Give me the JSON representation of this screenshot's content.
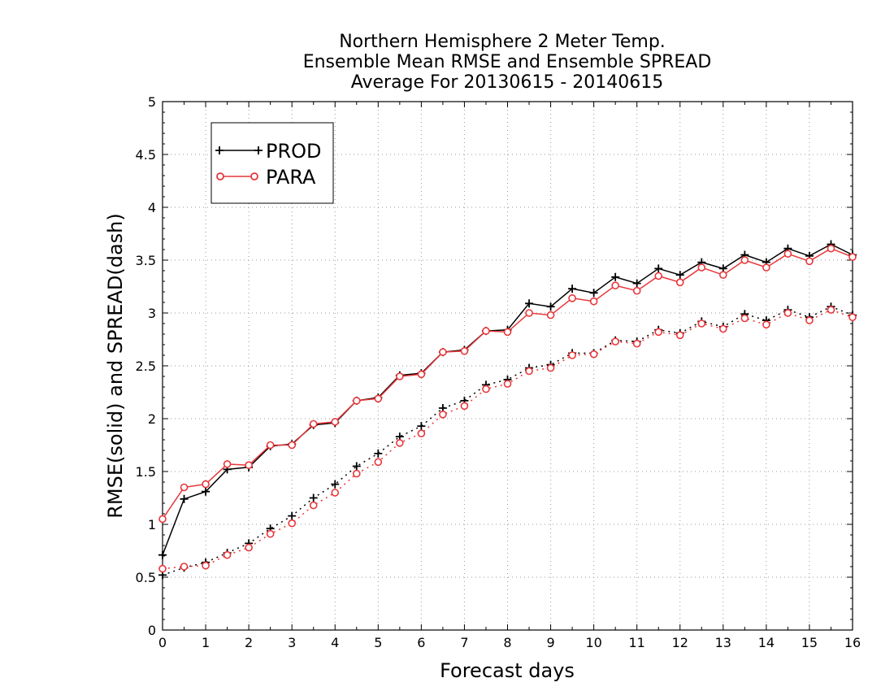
{
  "chart_data": {
    "type": "line",
    "title_lines": [
      "Northern Hemisphere 2 Meter Temp.",
      "Ensemble Mean RMSE and Ensemble SPREAD",
      "Average For 20130615 - 20140615"
    ],
    "xlabel": "Forecast days",
    "ylabel": "RMSE(solid) and SPREAD(dash)",
    "xlim": [
      0,
      16
    ],
    "ylim": [
      0,
      5
    ],
    "x_ticks": [
      "0",
      "1",
      "2",
      "3",
      "4",
      "5",
      "6",
      "7",
      "8",
      "9",
      "10",
      "11",
      "12",
      "13",
      "14",
      "15",
      "16"
    ],
    "y_ticks": [
      "0",
      "0.5",
      "1",
      "1.5",
      "2",
      "2.5",
      "3",
      "3.5",
      "4",
      "4.5",
      "5"
    ],
    "grid": true,
    "legend_position": "top-left",
    "legend": [
      {
        "label": "PROD",
        "color": "#000000",
        "marker": "plus"
      },
      {
        "label": "PARA",
        "color": "#e8363a",
        "marker": "circle"
      }
    ],
    "x": [
      0,
      0.5,
      1,
      1.5,
      2,
      2.5,
      3,
      3.5,
      4,
      4.5,
      5,
      5.5,
      6,
      6.5,
      7,
      7.5,
      8,
      8.5,
      9,
      9.5,
      10,
      10.5,
      11,
      11.5,
      12,
      12.5,
      13,
      13.5,
      14,
      14.5,
      15,
      15.5,
      16
    ],
    "series": [
      {
        "name": "PROD",
        "metric": "RMSE",
        "style": "solid",
        "color": "#000000",
        "marker": "plus",
        "values": [
          0.71,
          1.24,
          1.31,
          1.52,
          1.54,
          1.74,
          1.76,
          1.94,
          1.96,
          2.17,
          2.2,
          2.41,
          2.43,
          2.63,
          2.65,
          2.83,
          2.84,
          3.09,
          3.06,
          3.23,
          3.19,
          3.34,
          3.28,
          3.42,
          3.36,
          3.48,
          3.42,
          3.55,
          3.48,
          3.61,
          3.54,
          3.65,
          3.55
        ]
      },
      {
        "name": "PARA",
        "metric": "RMSE",
        "style": "solid",
        "color": "#e8363a",
        "marker": "circle",
        "values": [
          1.05,
          1.35,
          1.38,
          1.57,
          1.56,
          1.75,
          1.75,
          1.95,
          1.97,
          2.17,
          2.19,
          2.4,
          2.42,
          2.63,
          2.64,
          2.83,
          2.82,
          3.0,
          2.98,
          3.14,
          3.11,
          3.26,
          3.21,
          3.35,
          3.29,
          3.43,
          3.36,
          3.5,
          3.43,
          3.56,
          3.49,
          3.61,
          3.53
        ]
      },
      {
        "name": "PROD",
        "metric": "SPREAD",
        "style": "dash",
        "color": "#000000",
        "marker": "plus",
        "values": [
          0.52,
          0.59,
          0.64,
          0.73,
          0.82,
          0.96,
          1.08,
          1.25,
          1.38,
          1.55,
          1.67,
          1.83,
          1.93,
          2.1,
          2.17,
          2.32,
          2.37,
          2.48,
          2.51,
          2.62,
          2.62,
          2.74,
          2.73,
          2.84,
          2.81,
          2.92,
          2.87,
          2.99,
          2.93,
          3.03,
          2.96,
          3.06,
          2.98
        ]
      },
      {
        "name": "PARA",
        "metric": "SPREAD",
        "style": "dash",
        "color": "#e8363a",
        "marker": "circle",
        "values": [
          0.58,
          0.6,
          0.61,
          0.71,
          0.78,
          0.91,
          1.01,
          1.18,
          1.3,
          1.48,
          1.59,
          1.77,
          1.86,
          2.04,
          2.12,
          2.28,
          2.33,
          2.45,
          2.48,
          2.6,
          2.61,
          2.73,
          2.71,
          2.82,
          2.79,
          2.9,
          2.85,
          2.95,
          2.89,
          3.0,
          2.93,
          3.03,
          2.96
        ]
      }
    ]
  }
}
